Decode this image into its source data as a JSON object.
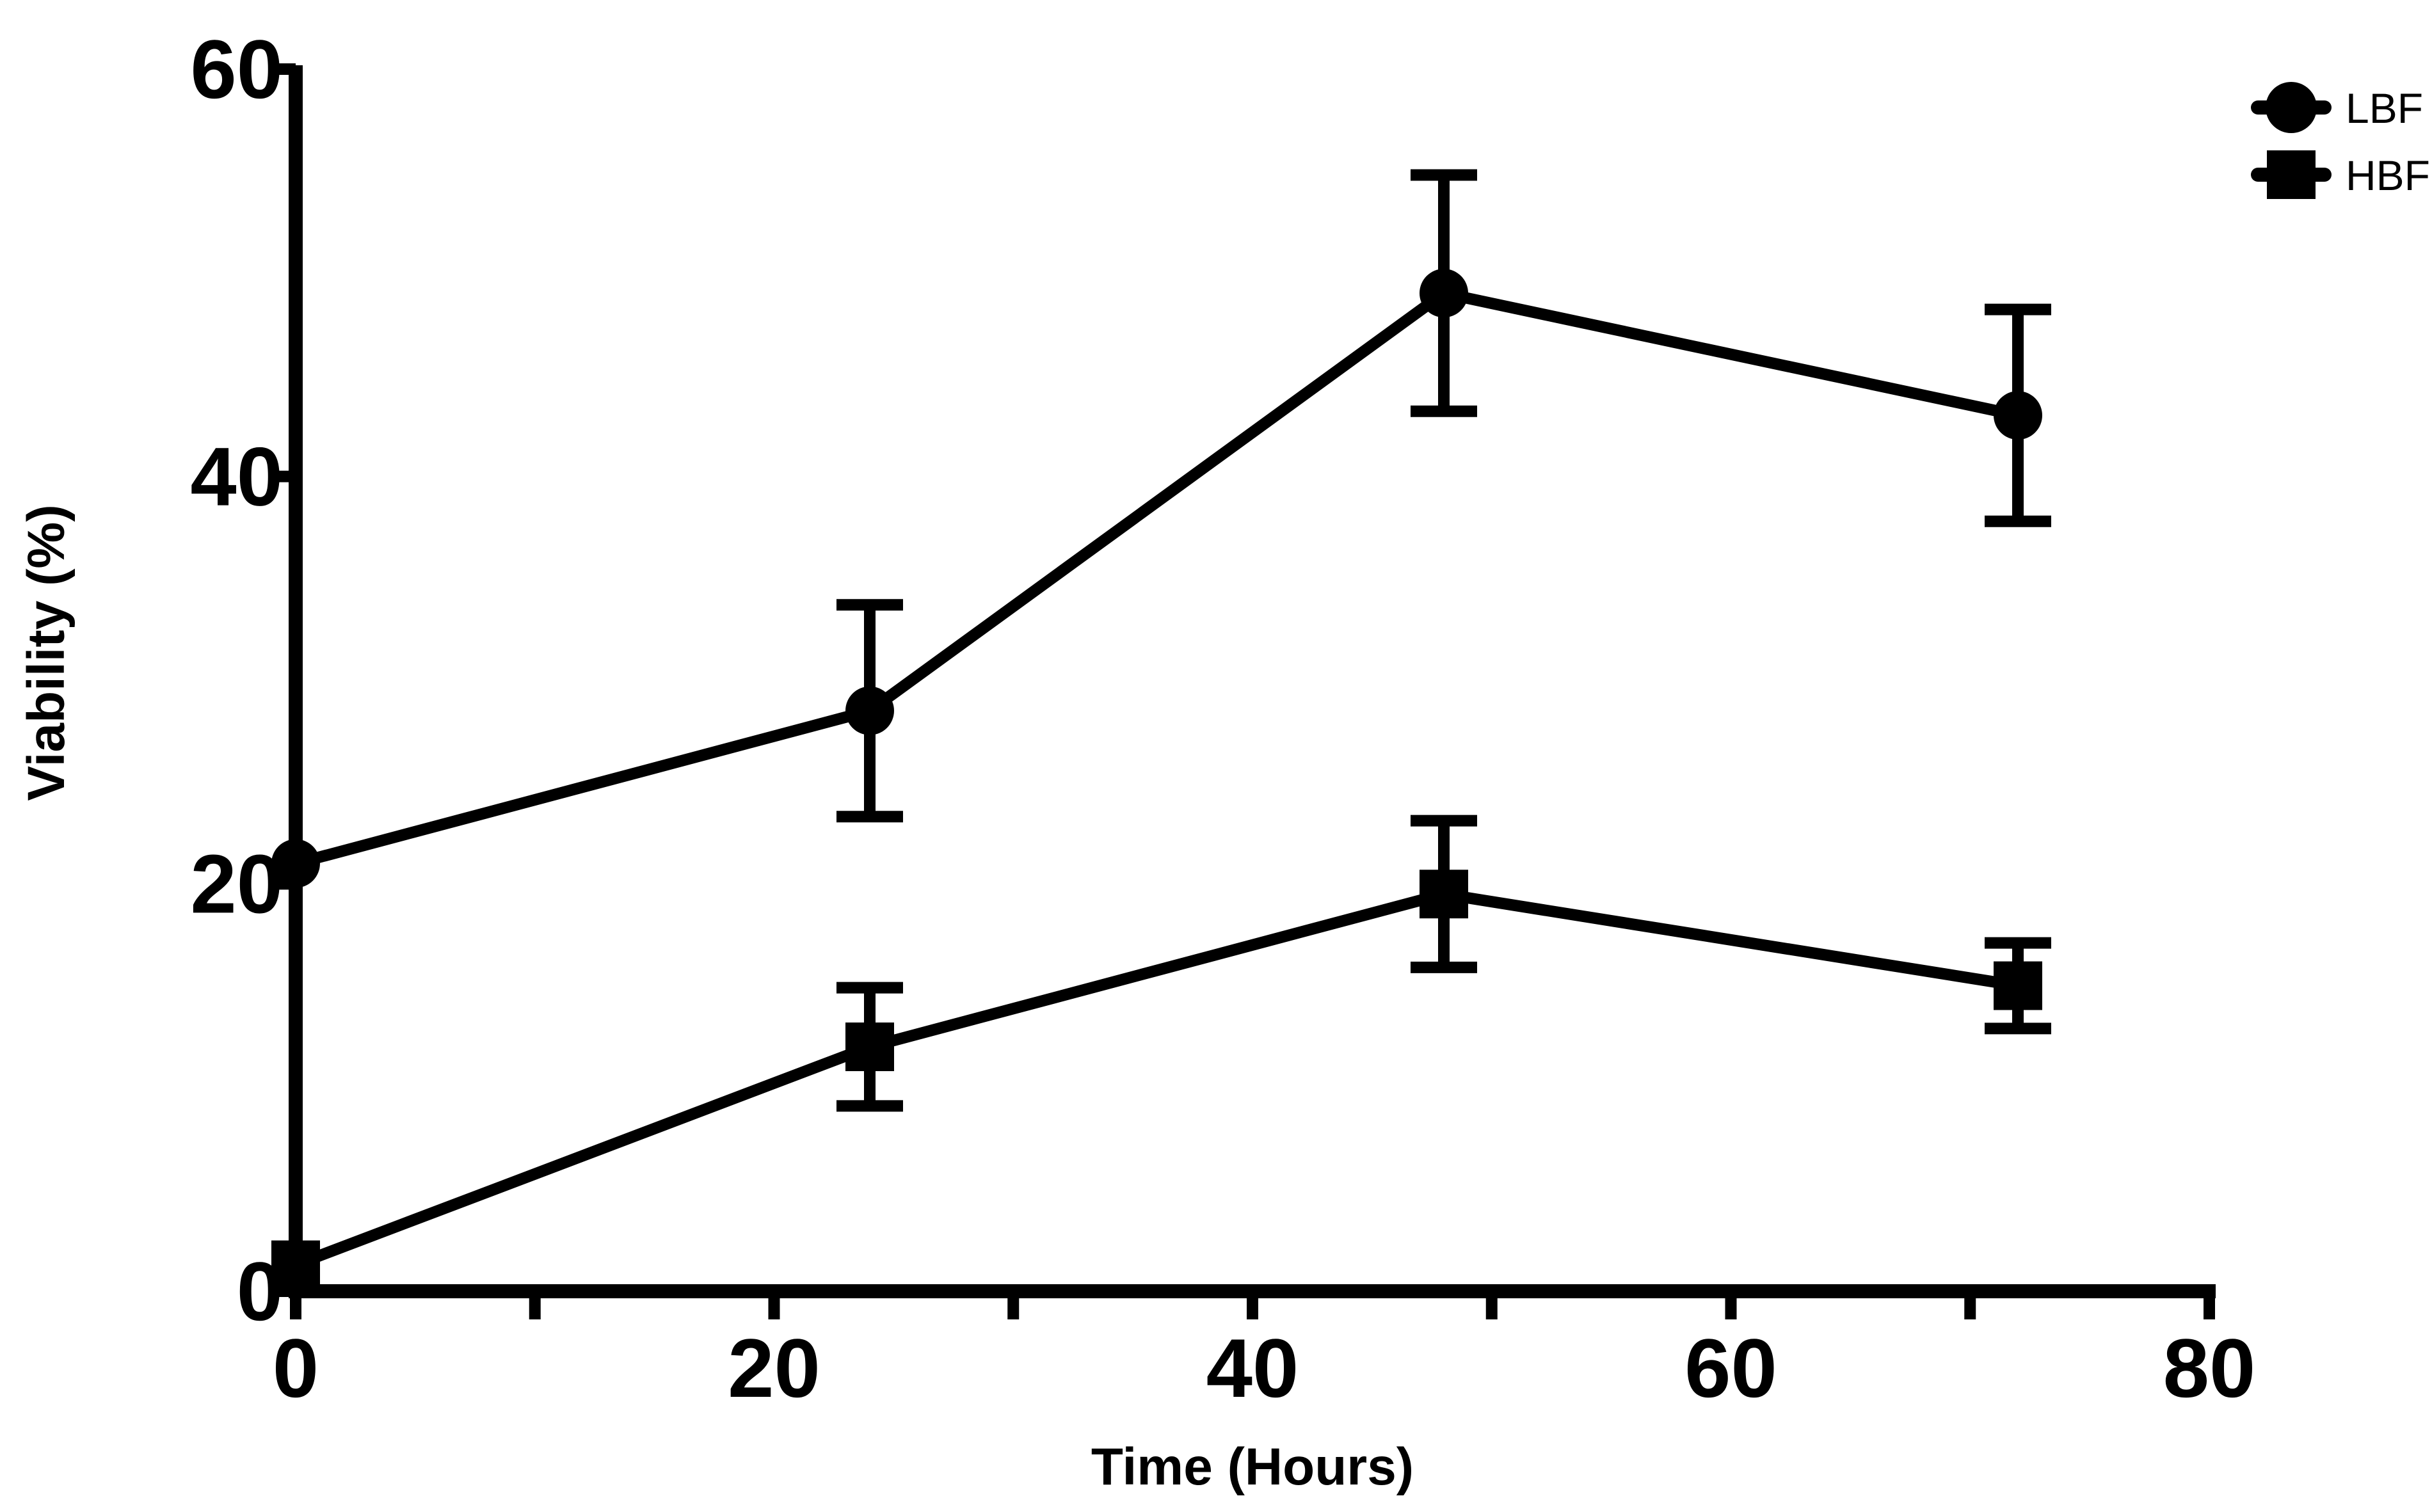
{
  "chart_data": {
    "type": "line",
    "title": "",
    "xlabel": "Time (Hours)",
    "ylabel": "Viability (%)",
    "xlim": [
      0,
      80
    ],
    "ylim": [
      0,
      60
    ],
    "xticks": [
      0,
      20,
      40,
      60,
      80
    ],
    "xticks_minor": [
      10,
      30,
      50,
      70
    ],
    "yticks": [
      0,
      20,
      40,
      60
    ],
    "grid": false,
    "legend_position": "top-right",
    "series": [
      {
        "name": "LBF",
        "marker": "circle",
        "color": "#000000",
        "x": [
          0,
          24,
          48,
          72
        ],
        "y": [
          21,
          28.5,
          49,
          43
        ],
        "error": [
          0,
          5.2,
          5.8,
          5.2
        ]
      },
      {
        "name": "HBF",
        "marker": "square",
        "color": "#000000",
        "x": [
          0,
          24,
          48,
          72
        ],
        "y": [
          1.3,
          12,
          19.5,
          15
        ],
        "error": [
          0,
          2.9,
          3.6,
          2.1
        ]
      }
    ]
  }
}
